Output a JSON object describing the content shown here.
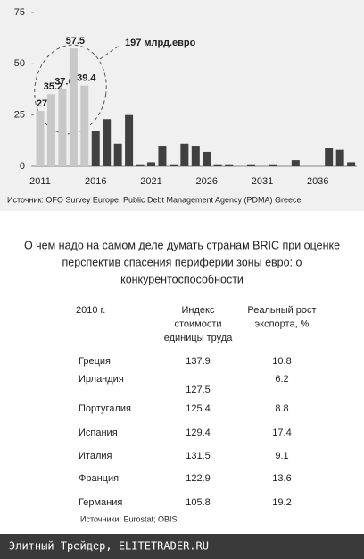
{
  "chart_data": {
    "type": "bar",
    "categories": [
      "2011",
      null,
      null,
      null,
      null,
      "2016",
      null,
      null,
      null,
      null,
      "2021",
      null,
      null,
      null,
      null,
      "2026",
      null,
      null,
      null,
      null,
      "2031",
      null,
      null,
      null,
      null,
      "2036",
      null,
      null,
      null
    ],
    "values": [
      27,
      35.2,
      37.6,
      57.5,
      39.4,
      17,
      23,
      11,
      25,
      1,
      2,
      10,
      1,
      11,
      10,
      7,
      1,
      1,
      0,
      1,
      0,
      1,
      0,
      3,
      0,
      0,
      9,
      8,
      2
    ],
    "value_labels": [
      "27",
      "35.2",
      "37.6",
      "57.5",
      "39.4",
      null,
      null,
      null,
      null,
      null,
      null,
      null,
      null,
      null,
      null,
      null,
      null,
      null,
      null,
      null,
      null,
      null,
      null,
      null,
      null,
      null,
      null,
      null,
      null
    ],
    "colors": [
      "#c8c8c8",
      "#c8c8c8",
      "#c8c8c8",
      "#c8c8c8",
      "#c8c8c8",
      "#404040",
      "#404040",
      "#404040",
      "#404040",
      "#404040",
      "#404040",
      "#404040",
      "#404040",
      "#404040",
      "#404040",
      "#404040",
      "#404040",
      "#404040",
      "#404040",
      "#404040",
      "#404040",
      "#404040",
      "#404040",
      "#404040",
      "#404040",
      "#404040",
      "#404040",
      "#404040",
      "#404040"
    ],
    "ylim": [
      0,
      75
    ],
    "yticks": [
      0,
      25,
      50,
      75
    ],
    "grid": false,
    "annotation": "197 млрд.евро",
    "source": "Источник: OFO Survey Europe, Public Debt Management Agency (PDMA) Greece"
  },
  "heading": [
    "О чем надо на самом деле думать странам BRIC при оценке",
    "перспектив спасения периферии зоны евро: о",
    "конкурентоспособности"
  ],
  "table": {
    "header": [
      [
        "2010 г."
      ],
      [
        "Индекс",
        "стоимости",
        "единицы труда"
      ],
      [
        "Реальный рост",
        "экспорта, %"
      ]
    ],
    "rows": [
      [
        "Греция",
        "137.9",
        "10.8"
      ],
      [
        "Ирландия",
        "127.5",
        "6.2"
      ],
      [
        "Португалия",
        "125.4",
        "8.8"
      ],
      [
        "Испания",
        "129.4",
        "17.4"
      ],
      [
        "Италия",
        "131.5",
        "9.1"
      ],
      [
        "Франция",
        "122.9",
        "13.6"
      ],
      [
        "Германия",
        "105.8",
        "19.2"
      ]
    ],
    "source": "Источники:  Eurostat;    OBIS"
  },
  "footer": "Элитный Трейдер, ELITETRADER.RU"
}
